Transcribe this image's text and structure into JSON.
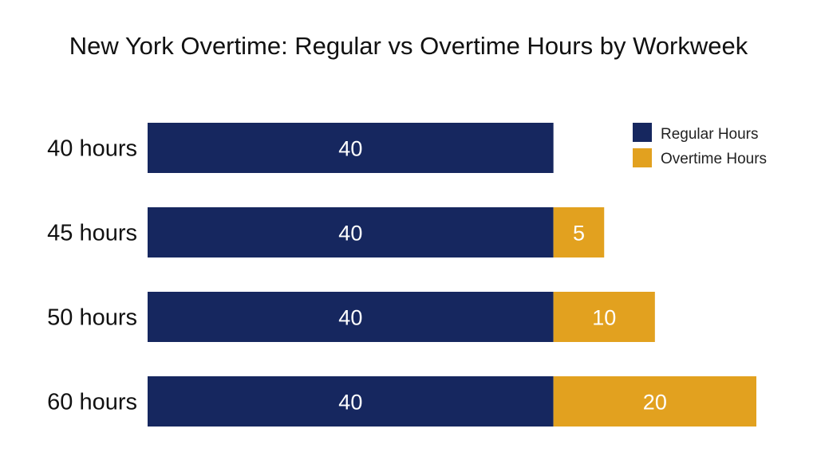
{
  "chart_data": {
    "type": "bar",
    "orientation": "horizontal",
    "stacked": true,
    "title": "New York Overtime: Regular vs Overtime Hours by Workweek",
    "categories": [
      "40 hours",
      "45 hours",
      "50 hours",
      "60 hours"
    ],
    "series": [
      {
        "name": "Regular Hours",
        "color": "#16275f",
        "values": [
          40,
          40,
          40,
          40
        ],
        "labels": [
          "40",
          "40",
          "40",
          "40"
        ]
      },
      {
        "name": "Overtime Hours",
        "color": "#e2a11f",
        "values": [
          0,
          5,
          10,
          20
        ],
        "labels": [
          "",
          "5",
          "10",
          "20"
        ]
      }
    ],
    "xlim": [
      0,
      60
    ],
    "grid": false,
    "axes_visible": false,
    "legend_position": "top-right"
  }
}
